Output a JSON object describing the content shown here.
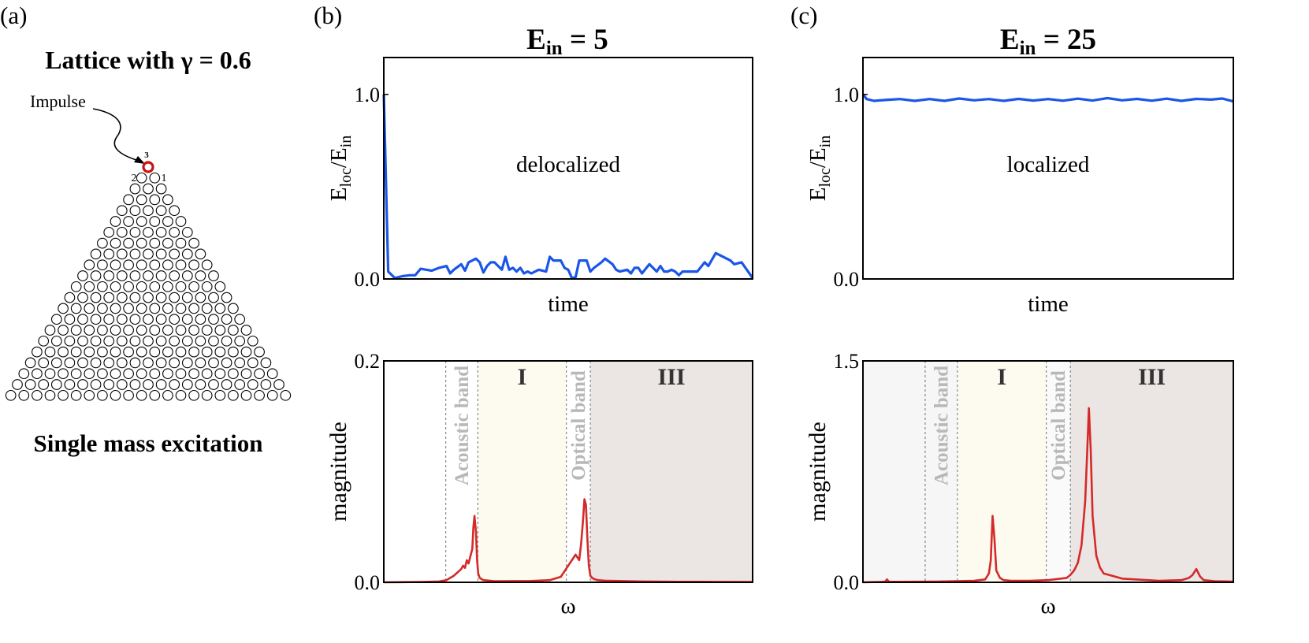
{
  "colors": {
    "time_line": "#1a56e8",
    "spectrum_line": "#d42a2a",
    "impulse_ring": "#c81414",
    "lattice_ring": "#000000",
    "band_dash": "#888888",
    "region_I_fill": "#fdfbf0",
    "region_III_fill": "#ebe6e4",
    "acoustic_fill_c": "#f6f6f6",
    "optical_fill_c": "#fafafa",
    "band_label_text": "#b8b8b8",
    "region_label_text": "#333333"
  },
  "panel_a": {
    "letter": "(a)",
    "title_prefix": "Lattice with ",
    "gamma_symbol": "γ",
    "title_suffix": " = 0.6",
    "impulse_label": "Impulse",
    "node_labels": [
      "3",
      "2",
      "1"
    ],
    "lattice_rows": 22,
    "footer": "Single mass excitation"
  },
  "panel_b": {
    "letter": "(b)",
    "title_E": "E",
    "title_sub": "in",
    "title_value": " = 5"
  },
  "panel_c": {
    "letter": "(c)",
    "title_E": "E",
    "title_sub": "in",
    "title_value": " = 25"
  },
  "chart_data": [
    {
      "id": "b_time",
      "type": "line",
      "title": "Ein = 5",
      "xlabel": "time",
      "ylabel_main": "E",
      "ylabel_sub1": "loc",
      "ylabel_mid": "/E",
      "ylabel_sub2": "in",
      "annotation": "delocalized",
      "xlim": [
        0,
        100
      ],
      "ylim": [
        0,
        1.2
      ],
      "yticks": [
        0.0,
        1.0
      ],
      "ytick_labels": [
        "0.0",
        "1.0"
      ],
      "series": [
        {
          "name": "Eloc/Ein",
          "x": [
            0,
            1.2,
            3,
            5,
            7,
            8.5,
            10,
            11.5,
            13,
            15,
            17,
            18,
            19,
            21,
            22,
            23,
            25,
            26,
            27,
            28,
            29,
            30,
            32,
            33,
            34,
            35,
            36,
            37,
            38,
            39,
            40,
            42,
            44,
            45,
            46,
            48,
            49,
            50,
            51,
            52,
            53,
            55,
            56,
            57,
            59,
            60,
            62,
            63,
            64,
            66,
            67,
            68,
            69,
            70,
            72,
            74,
            75,
            76,
            77,
            78,
            79,
            80,
            81,
            82,
            84,
            85,
            87,
            88,
            90,
            92,
            94,
            95,
            97,
            100
          ],
          "y": [
            1.0,
            0.04,
            0.005,
            0.015,
            0.02,
            0.02,
            0.055,
            0.05,
            0.045,
            0.06,
            0.07,
            0.03,
            0.05,
            0.08,
            0.045,
            0.09,
            0.11,
            0.09,
            0.035,
            0.07,
            0.09,
            0.09,
            0.05,
            0.12,
            0.05,
            0.06,
            0.04,
            0.06,
            0.03,
            0.04,
            0.03,
            0.05,
            0.04,
            0.12,
            0.1,
            0.1,
            0.06,
            0.05,
            0.005,
            0.01,
            0.1,
            0.1,
            0.04,
            0.06,
            0.09,
            0.11,
            0.08,
            0.05,
            0.04,
            0.05,
            0.03,
            0.06,
            0.06,
            0.03,
            0.08,
            0.04,
            0.07,
            0.04,
            0.04,
            0.05,
            0.04,
            0.02,
            0.04,
            0.04,
            0.04,
            0.04,
            0.09,
            0.07,
            0.14,
            0.12,
            0.1,
            0.08,
            0.09,
            0.005
          ]
        }
      ]
    },
    {
      "id": "c_time",
      "type": "line",
      "title": "Ein = 25",
      "xlabel": "time",
      "ylabel_main": "E",
      "ylabel_sub1": "loc",
      "ylabel_mid": "/E",
      "ylabel_sub2": "in",
      "annotation": "localized",
      "xlim": [
        0,
        100
      ],
      "ylim": [
        0,
        1.2
      ],
      "yticks": [
        0.0,
        1.0
      ],
      "ytick_labels": [
        "0.0",
        "1.0"
      ],
      "series": [
        {
          "name": "Eloc/Ein",
          "x": [
            0,
            1,
            3,
            6,
            10,
            14,
            18,
            22,
            26,
            30,
            34,
            38,
            42,
            46,
            50,
            54,
            58,
            62,
            66,
            70,
            74,
            78,
            82,
            86,
            90,
            94,
            97,
            100
          ],
          "y": [
            1.0,
            0.975,
            0.965,
            0.97,
            0.975,
            0.965,
            0.975,
            0.965,
            0.978,
            0.968,
            0.975,
            0.965,
            0.976,
            0.967,
            0.975,
            0.966,
            0.977,
            0.967,
            0.98,
            0.968,
            0.976,
            0.966,
            0.977,
            0.965,
            0.976,
            0.972,
            0.978,
            0.962
          ]
        }
      ]
    },
    {
      "id": "b_spectrum",
      "type": "line",
      "xlabel": "ω",
      "ylabel": "magnitude",
      "xlim": [
        0,
        100
      ],
      "ylim": [
        0,
        0.2
      ],
      "yticks": [
        0.0,
        0.2
      ],
      "ytick_labels": [
        "0.0",
        "0.2"
      ],
      "bands": [
        {
          "label": "Acoustic band",
          "x0": 16.8,
          "x1": 25.5,
          "kind": "acoustic",
          "fill": false
        },
        {
          "label": "I",
          "x0": 25.5,
          "x1": 49.5,
          "kind": "region_I",
          "fill": true
        },
        {
          "label": "Optical band",
          "x0": 49.5,
          "x1": 56.0,
          "kind": "optical",
          "fill": false
        },
        {
          "label": "III",
          "x0": 56.0,
          "x1": 100,
          "kind": "region_III",
          "fill": true
        }
      ],
      "series": [
        {
          "name": "magnitude",
          "x": [
            0,
            10,
            15,
            17,
            18,
            19,
            20,
            21,
            21.5,
            22,
            22.5,
            23,
            23.5,
            24,
            24.3,
            24.6,
            25,
            25.3,
            25.6,
            26,
            27,
            30,
            40,
            45,
            48,
            49,
            50,
            51,
            52,
            53,
            53.5,
            54,
            54.4,
            54.8,
            55.2,
            55.6,
            56,
            56.5,
            57,
            58,
            60,
            70,
            80,
            90,
            100
          ],
          "y": [
            0,
            0.0003,
            0.0008,
            0.002,
            0.004,
            0.006,
            0.009,
            0.012,
            0.015,
            0.013,
            0.02,
            0.017,
            0.024,
            0.03,
            0.05,
            0.06,
            0.045,
            0.02,
            0.008,
            0.004,
            0.002,
            0.001,
            0.0012,
            0.002,
            0.005,
            0.01,
            0.015,
            0.02,
            0.025,
            0.02,
            0.035,
            0.055,
            0.075,
            0.07,
            0.04,
            0.015,
            0.006,
            0.004,
            0.003,
            0.002,
            0.0015,
            0.0008,
            0.0005,
            0.0004,
            0.0003
          ]
        }
      ]
    },
    {
      "id": "c_spectrum",
      "type": "line",
      "xlabel": "ω",
      "ylabel": "magnitude",
      "xlim": [
        0,
        100
      ],
      "ylim": [
        0,
        1.5
      ],
      "yticks": [
        0.0,
        1.5
      ],
      "ytick_labels": [
        "0.0",
        "1.5"
      ],
      "bands": [
        {
          "label": "",
          "x0": 0,
          "x1": 16.8,
          "kind": "acoustic_pre",
          "fill": true
        },
        {
          "label": "Acoustic band",
          "x0": 16.8,
          "x1": 25.5,
          "kind": "acoustic",
          "fill": true
        },
        {
          "label": "I",
          "x0": 25.5,
          "x1": 49.5,
          "kind": "region_I",
          "fill": true
        },
        {
          "label": "Optical band",
          "x0": 49.5,
          "x1": 56.0,
          "kind": "optical",
          "fill": true
        },
        {
          "label": "III",
          "x0": 56.0,
          "x1": 100,
          "kind": "region_III",
          "fill": true
        }
      ],
      "series": [
        {
          "name": "magnitude",
          "x": [
            0,
            5,
            6,
            6.5,
            7,
            10,
            20,
            30,
            33,
            34,
            34.5,
            35,
            35.5,
            36,
            37,
            38,
            40,
            45,
            50,
            55,
            56,
            57,
            58,
            59,
            60,
            60.5,
            61,
            61.5,
            62,
            63,
            64,
            65,
            70,
            80,
            86,
            88,
            89,
            90,
            91,
            92,
            95,
            100
          ],
          "y": [
            0,
            0.003,
            0.005,
            0.02,
            0.004,
            0.004,
            0.005,
            0.01,
            0.02,
            0.06,
            0.15,
            0.45,
            0.3,
            0.08,
            0.03,
            0.015,
            0.01,
            0.01,
            0.015,
            0.03,
            0.05,
            0.08,
            0.13,
            0.25,
            0.55,
            0.85,
            1.18,
            0.9,
            0.45,
            0.18,
            0.1,
            0.06,
            0.025,
            0.01,
            0.015,
            0.03,
            0.05,
            0.09,
            0.04,
            0.015,
            0.008,
            0.005
          ]
        }
      ]
    }
  ]
}
